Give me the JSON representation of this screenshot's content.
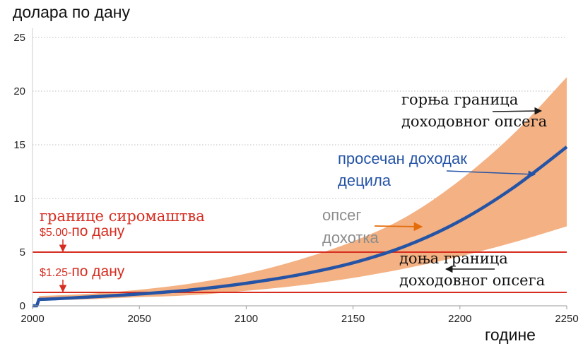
{
  "chart_data": {
    "type": "area",
    "ylabel": "долара по дану",
    "xlabel": "године",
    "xlim": [
      2000,
      2250
    ],
    "ylim": [
      0,
      25
    ],
    "xticks": [
      2000,
      2050,
      2100,
      2150,
      2200,
      2250
    ],
    "yticks": [
      0,
      5,
      10,
      15,
      20,
      25
    ],
    "grid": "horizontal-dotted",
    "series": [
      {
        "name": "просечан доходак децила",
        "type": "line",
        "color": "#2554a6",
        "x": [
          2000,
          2002,
          2003,
          2010,
          2025,
          2050,
          2075,
          2100,
          2125,
          2150,
          2175,
          2200,
          2225,
          2250
        ],
        "y": [
          0,
          0,
          0.6,
          0.65,
          0.8,
          1.1,
          1.5,
          2.1,
          2.9,
          4.0,
          5.6,
          7.9,
          11.0,
          14.8
        ]
      },
      {
        "name": "опсег дохотка",
        "type": "band",
        "color": "#f4b183",
        "x": [
          2003,
          2025,
          2050,
          2075,
          2100,
          2125,
          2150,
          2175,
          2200,
          2225,
          2250
        ],
        "upper": [
          0.9,
          1.1,
          1.5,
          2.1,
          3.0,
          4.3,
          6.0,
          8.3,
          11.7,
          16.0,
          21.3
        ],
        "lower": [
          0.5,
          0.6,
          0.8,
          1.0,
          1.4,
          1.9,
          2.6,
          3.5,
          4.6,
          5.9,
          7.4
        ]
      }
    ],
    "reference_lines": [
      {
        "y": 5,
        "color": "#d62d20",
        "label": "$5.00-",
        "suffix": "по дану"
      },
      {
        "y": 1.25,
        "color": "#d62d20",
        "label": "$1.25-",
        "suffix": "по дану"
      }
    ],
    "annotations": {
      "poverty_title": "границе сиромаштва",
      "upper_line1": "горња граница",
      "upper_line2": "доходовног опсега",
      "mean_line1": "просечан доходак",
      "mean_line2": "децила",
      "range_line1": "опсег",
      "range_line2": "дохотка",
      "lower_line1": "доња граница",
      "lower_line2": "доходовног опсега"
    }
  }
}
